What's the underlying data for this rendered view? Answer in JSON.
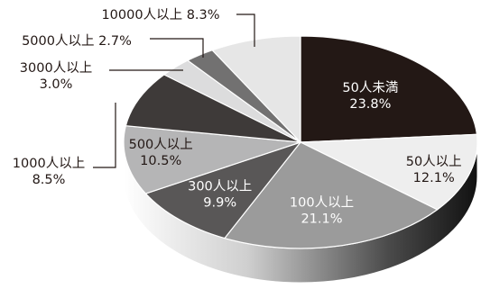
{
  "chart_data": {
    "type": "pie",
    "style": "3d",
    "unit": "%",
    "slices": [
      {
        "name": "50人未満",
        "value": 23.8,
        "label": "50人未満",
        "value_label": "23.8%",
        "color": "#231815",
        "label_color": "#ffffff"
      },
      {
        "name": "50人以上",
        "value": 12.1,
        "label": "50人以上",
        "value_label": "12.1%",
        "color": "#eeeeee",
        "label_color": "#231815"
      },
      {
        "name": "100人以上",
        "value": 21.1,
        "label": "100人以上",
        "value_label": "21.1%",
        "color": "#9b9b9b",
        "label_color": "#ffffff"
      },
      {
        "name": "300人以上",
        "value": 9.9,
        "label": "300人以上",
        "value_label": "9.9%",
        "color": "#595757",
        "label_color": "#ffffff"
      },
      {
        "name": "500人以上",
        "value": 10.5,
        "label": "500人以上",
        "value_label": "10.5%",
        "color": "#b5b5b6",
        "label_color": "#231815"
      },
      {
        "name": "1000人以上",
        "value": 8.5,
        "label": "1000人以上",
        "value_label": "8.5%",
        "color": "#3e3a39",
        "label_color": "#231815"
      },
      {
        "name": "3000人以上",
        "value": 3.0,
        "label": "3000人以上",
        "value_label": "3.0%",
        "color": "#dcdcdd",
        "label_color": "#231815"
      },
      {
        "name": "5000人以上",
        "value": 2.7,
        "label": "5000人以上",
        "value_label": "2.7%",
        "color": "#727171",
        "label_color": "#231815"
      },
      {
        "name": "10000人以上",
        "value": 8.3,
        "label": "10000人以上",
        "value_label": "8.3%",
        "color": "#e6e6e6",
        "label_color": "#231815"
      }
    ]
  }
}
